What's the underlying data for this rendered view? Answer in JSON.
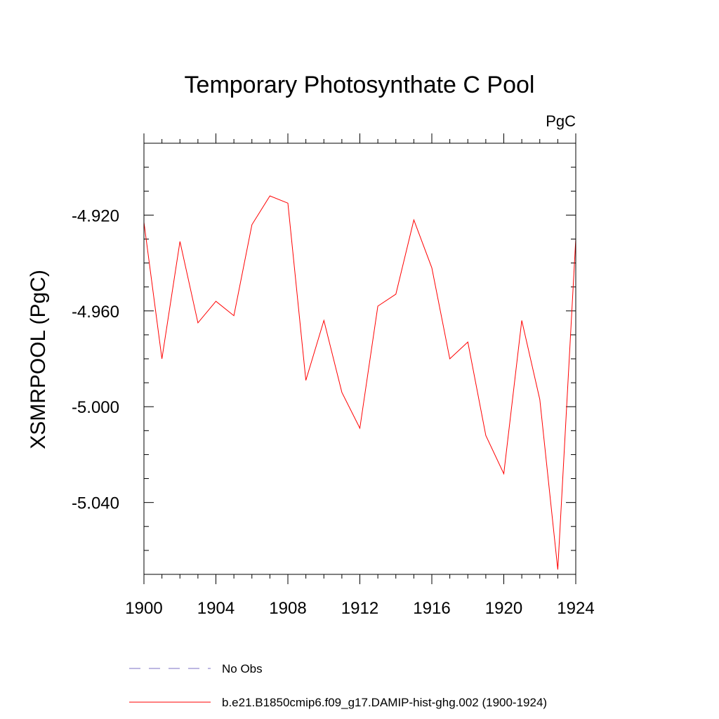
{
  "chart_data": {
    "type": "line",
    "title": "Temporary Photosynthate C Pool",
    "units": "PgC",
    "ylabel": "XSMRPOOL  (PgC)",
    "xlabel": "",
    "xlim": [
      1900,
      1924
    ],
    "ylim": [
      -5.07,
      -4.89
    ],
    "x_ticks": [
      1900,
      1904,
      1908,
      1912,
      1916,
      1920,
      1924
    ],
    "x_tick_labels": [
      "1900",
      "1904",
      "1908",
      "1912",
      "1916",
      "1920",
      "1924"
    ],
    "x_minor_step": 1,
    "y_ticks": [
      -4.92,
      -4.96,
      -5.0,
      -5.04
    ],
    "y_tick_labels": [
      "-4.920",
      "-4.960",
      "-5.000",
      "-5.040"
    ],
    "y_minor_step": 0.01,
    "grid": false,
    "legend_position": "bottom",
    "series": [
      {
        "name": "No Obs",
        "color": "#7b6fc4",
        "dash": "dashed",
        "x": [],
        "y": []
      },
      {
        "name": "b.e21.B1850cmip6.f09_g17.DAMIP-hist-ghg.002 (1900-1924)",
        "color": "#ff0000",
        "dash": "solid",
        "x": [
          1900,
          1901,
          1902,
          1903,
          1904,
          1905,
          1906,
          1907,
          1908,
          1909,
          1910,
          1911,
          1912,
          1913,
          1914,
          1915,
          1916,
          1917,
          1918,
          1919,
          1920,
          1921,
          1922,
          1923,
          1924
        ],
        "y": [
          -4.923,
          -4.98,
          -4.931,
          -4.965,
          -4.956,
          -4.962,
          -4.924,
          -4.912,
          -4.915,
          -4.989,
          -4.964,
          -4.994,
          -5.009,
          -4.958,
          -4.953,
          -4.922,
          -4.942,
          -4.98,
          -4.973,
          -5.012,
          -5.028,
          -4.964,
          -4.997,
          -5.068,
          -4.93
        ]
      }
    ]
  }
}
